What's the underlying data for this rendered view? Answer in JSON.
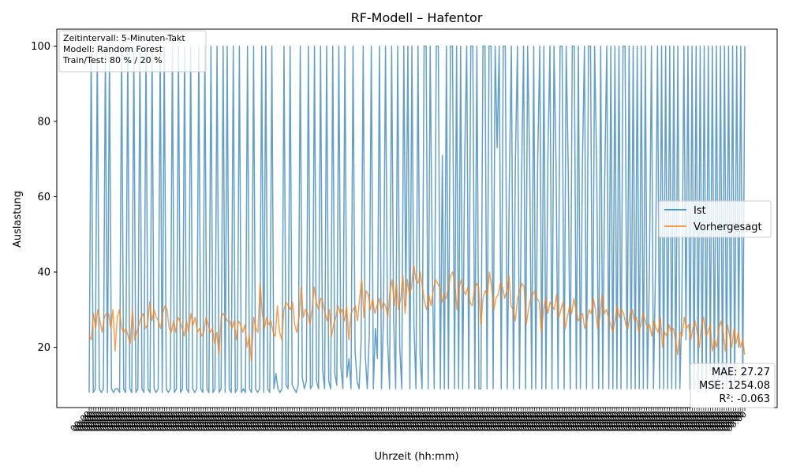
{
  "chart_data": {
    "type": "line",
    "title": "RF-Modell – Hafentor",
    "xlabel": "Uhrzeit (hh:mm)",
    "ylabel": "Auslastung",
    "ylim": [
      4,
      104.5
    ],
    "yticks": [
      20,
      40,
      60,
      80,
      100
    ],
    "x_tick_label": "00:00",
    "x_tick_count": 288,
    "colors": {
      "Ist": "#1f77b4",
      "Vorhergesagt": "#ff7f0e"
    },
    "legend_position": "center-right",
    "info_box": [
      "Zeitintervall: 5-Minuten-Takt",
      "Modell: Random Forest",
      "Train/Test: 80 % / 20 %"
    ],
    "metrics": [
      "MAE: 27.27",
      "MSE: 1254.08",
      "R²: -0.063"
    ],
    "series": [
      {
        "name": "Ist",
        "values": [
          8,
          100,
          8,
          9,
          100,
          9,
          8,
          9,
          100,
          8,
          100,
          9,
          8,
          9,
          9,
          8,
          100,
          9,
          8,
          100,
          9,
          8,
          100,
          8,
          9,
          100,
          9,
          8,
          100,
          9,
          8,
          100,
          9,
          8,
          9,
          100,
          8,
          100,
          9,
          8,
          9,
          100,
          8,
          9,
          100,
          8,
          9,
          100,
          9,
          8,
          100,
          9,
          8,
          9,
          100,
          9,
          8,
          100,
          9,
          8,
          100,
          8,
          9,
          100,
          8,
          9,
          100,
          8,
          100,
          9,
          8,
          100,
          8,
          9,
          100,
          8,
          9,
          8,
          100,
          9,
          8,
          100,
          9,
          8,
          9,
          100,
          8,
          100,
          9,
          8,
          100,
          9,
          13,
          9,
          8,
          9,
          100,
          10,
          9,
          100,
          10,
          9,
          8,
          10,
          100,
          12,
          9,
          11,
          100,
          9,
          10,
          100,
          11,
          9,
          100,
          14,
          9,
          100,
          11,
          9,
          100,
          13,
          10,
          100,
          15,
          9,
          100,
          12,
          17,
          9,
          100,
          19,
          11,
          9,
          22,
          100,
          18,
          9,
          23,
          100,
          9,
          25,
          17,
          100,
          9,
          28,
          100,
          22,
          9,
          100,
          27,
          9,
          100,
          20,
          9,
          100,
          31,
          100,
          9,
          100,
          26,
          9,
          100,
          18,
          9,
          100,
          100,
          9,
          100,
          43,
          9,
          100,
          100,
          9,
          71,
          9,
          100,
          9,
          100,
          100,
          9,
          100,
          9,
          100,
          9,
          70,
          100,
          9,
          100,
          100,
          9,
          100,
          9,
          9,
          100,
          100,
          9,
          100,
          100,
          9,
          100,
          73,
          100,
          9,
          100,
          100,
          9,
          64,
          100,
          9,
          70,
          100,
          9,
          64,
          100,
          9,
          100,
          70,
          9,
          100,
          9,
          71,
          100,
          9,
          100,
          9,
          71,
          100,
          9,
          100,
          69,
          9,
          100,
          100,
          9,
          100,
          68,
          9,
          100,
          100,
          9,
          100,
          9,
          69,
          100,
          9,
          100,
          100,
          9,
          100,
          69,
          9,
          100,
          9,
          65,
          100,
          9,
          100,
          9,
          100,
          9,
          100,
          9,
          100,
          100,
          9,
          100,
          9,
          100,
          9,
          100,
          9,
          100,
          9,
          100,
          9,
          40,
          100,
          9,
          41,
          100,
          9,
          100,
          9,
          100,
          9,
          100,
          9,
          100,
          9,
          100,
          9,
          31,
          100,
          22,
          100,
          9,
          100,
          9,
          100,
          8,
          100,
          9,
          100,
          8,
          100,
          14,
          100,
          9,
          100,
          8,
          100,
          9,
          100,
          9,
          100,
          9,
          100,
          9,
          100,
          20,
          100,
          9,
          100
        ]
      },
      {
        "name": "Vorhergesagt",
        "values": [
          23,
          22,
          29,
          25,
          30,
          27,
          24,
          28,
          29,
          29,
          25,
          30,
          19,
          28,
          30,
          25,
          24,
          25,
          23,
          21,
          30,
          22,
          24,
          26,
          28,
          29,
          25,
          26,
          32,
          27,
          30,
          28,
          27,
          25,
          29,
          31,
          30,
          25,
          24,
          27,
          24,
          28,
          27,
          25,
          23,
          27,
          24,
          29,
          26,
          28,
          24,
          25,
          23,
          24,
          28,
          26,
          24,
          25,
          21,
          24,
          18,
          28,
          29,
          28,
          27,
          27,
          25,
          27,
          22,
          27,
          26,
          24,
          26,
          20,
          23,
          16,
          28,
          25,
          24,
          37,
          29,
          25,
          28,
          26,
          27,
          24,
          23,
          31,
          24,
          22,
          30,
          32,
          31,
          30,
          32,
          26,
          24,
          28,
          36,
          28,
          30,
          29,
          26,
          30,
          36,
          32,
          30,
          33,
          32,
          29,
          27,
          30,
          23,
          26,
          28,
          31,
          29,
          30,
          27,
          31,
          22,
          29,
          30,
          31,
          27,
          33,
          38,
          28,
          35,
          34,
          30,
          33,
          29,
          31,
          33,
          30,
          32,
          31,
          28,
          35,
          38,
          31,
          37,
          30,
          33,
          39,
          29,
          38,
          34,
          36,
          42,
          38,
          37,
          40,
          36,
          32,
          30,
          34,
          31,
          35,
          38,
          37,
          36,
          32,
          34,
          33,
          36,
          39,
          40,
          37,
          30,
          36,
          38,
          35,
          34,
          36,
          32,
          31,
          35,
          37,
          36,
          26,
          33,
          35,
          34,
          40,
          36,
          30,
          33,
          34,
          37,
          36,
          33,
          35,
          39,
          31,
          30,
          27,
          33,
          35,
          37,
          36,
          26,
          30,
          33,
          34,
          35,
          33,
          32,
          24,
          30,
          33,
          29,
          32,
          31,
          30,
          34,
          28,
          30,
          32,
          25,
          28,
          31,
          29,
          33,
          30,
          27,
          28,
          29,
          25,
          27,
          30,
          29,
          33,
          30,
          25,
          28,
          34,
          29,
          30,
          28,
          26,
          24,
          27,
          31,
          28,
          30,
          29,
          26,
          25,
          29,
          30,
          27,
          28,
          24,
          26,
          29,
          27,
          25,
          26,
          23,
          27,
          25,
          24,
          28,
          20,
          24,
          23,
          26,
          24,
          25,
          22,
          18,
          24,
          23,
          28,
          25,
          26,
          22,
          25,
          27,
          24,
          20,
          26,
          28,
          23,
          24,
          26,
          19,
          22,
          20,
          25,
          27,
          24,
          19,
          26,
          23,
          20,
          25,
          21,
          24,
          20,
          22,
          18
        ]
      }
    ]
  }
}
